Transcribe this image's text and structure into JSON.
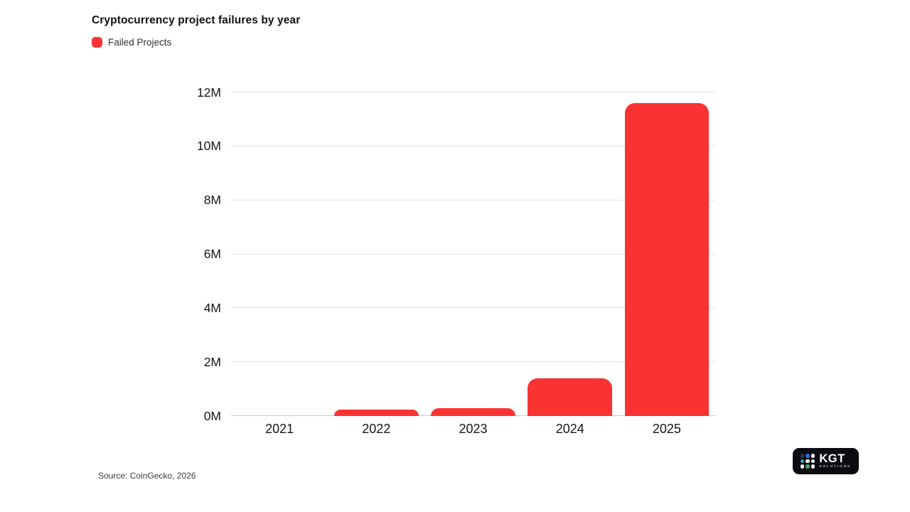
{
  "header": {
    "title": "Cryptocurrency project failures by year",
    "legend": [
      {
        "label": "Failed Projects",
        "color": "#f93232"
      }
    ]
  },
  "chart_data": {
    "type": "bar",
    "title": "Cryptocurrency project failures by year",
    "categories": [
      "2021",
      "2022",
      "2023",
      "2024",
      "2025"
    ],
    "series": [
      {
        "name": "Failed Projects",
        "color": "#f93232",
        "values": [
          0,
          0.25,
          0.3,
          1.4,
          11.6
        ]
      }
    ],
    "unit": "M",
    "xlabel": "",
    "ylabel": "",
    "ylim": [
      0,
      12
    ],
    "yticks": [
      {
        "value": 0,
        "label": "0M"
      },
      {
        "value": 2,
        "label": "2M"
      },
      {
        "value": 4,
        "label": "4M"
      },
      {
        "value": 6,
        "label": "6M"
      },
      {
        "value": 8,
        "label": "8M"
      },
      {
        "value": 10,
        "label": "10M"
      },
      {
        "value": 12,
        "label": "12M"
      }
    ],
    "grid": true,
    "legend_position": "top-left"
  },
  "footer": {
    "source": "Source: CoinGecko, 2026",
    "logo": {
      "name": "KGT",
      "subtext": "SOLUTIONS",
      "background": "#0b0c11",
      "dot_colors": [
        "#2a3654",
        "#3069d6",
        "#ffffff",
        "#2fa9c4",
        "#ffffff",
        "#ffffff",
        "#ffffff",
        "#3fae62",
        "#ffffff"
      ]
    }
  }
}
